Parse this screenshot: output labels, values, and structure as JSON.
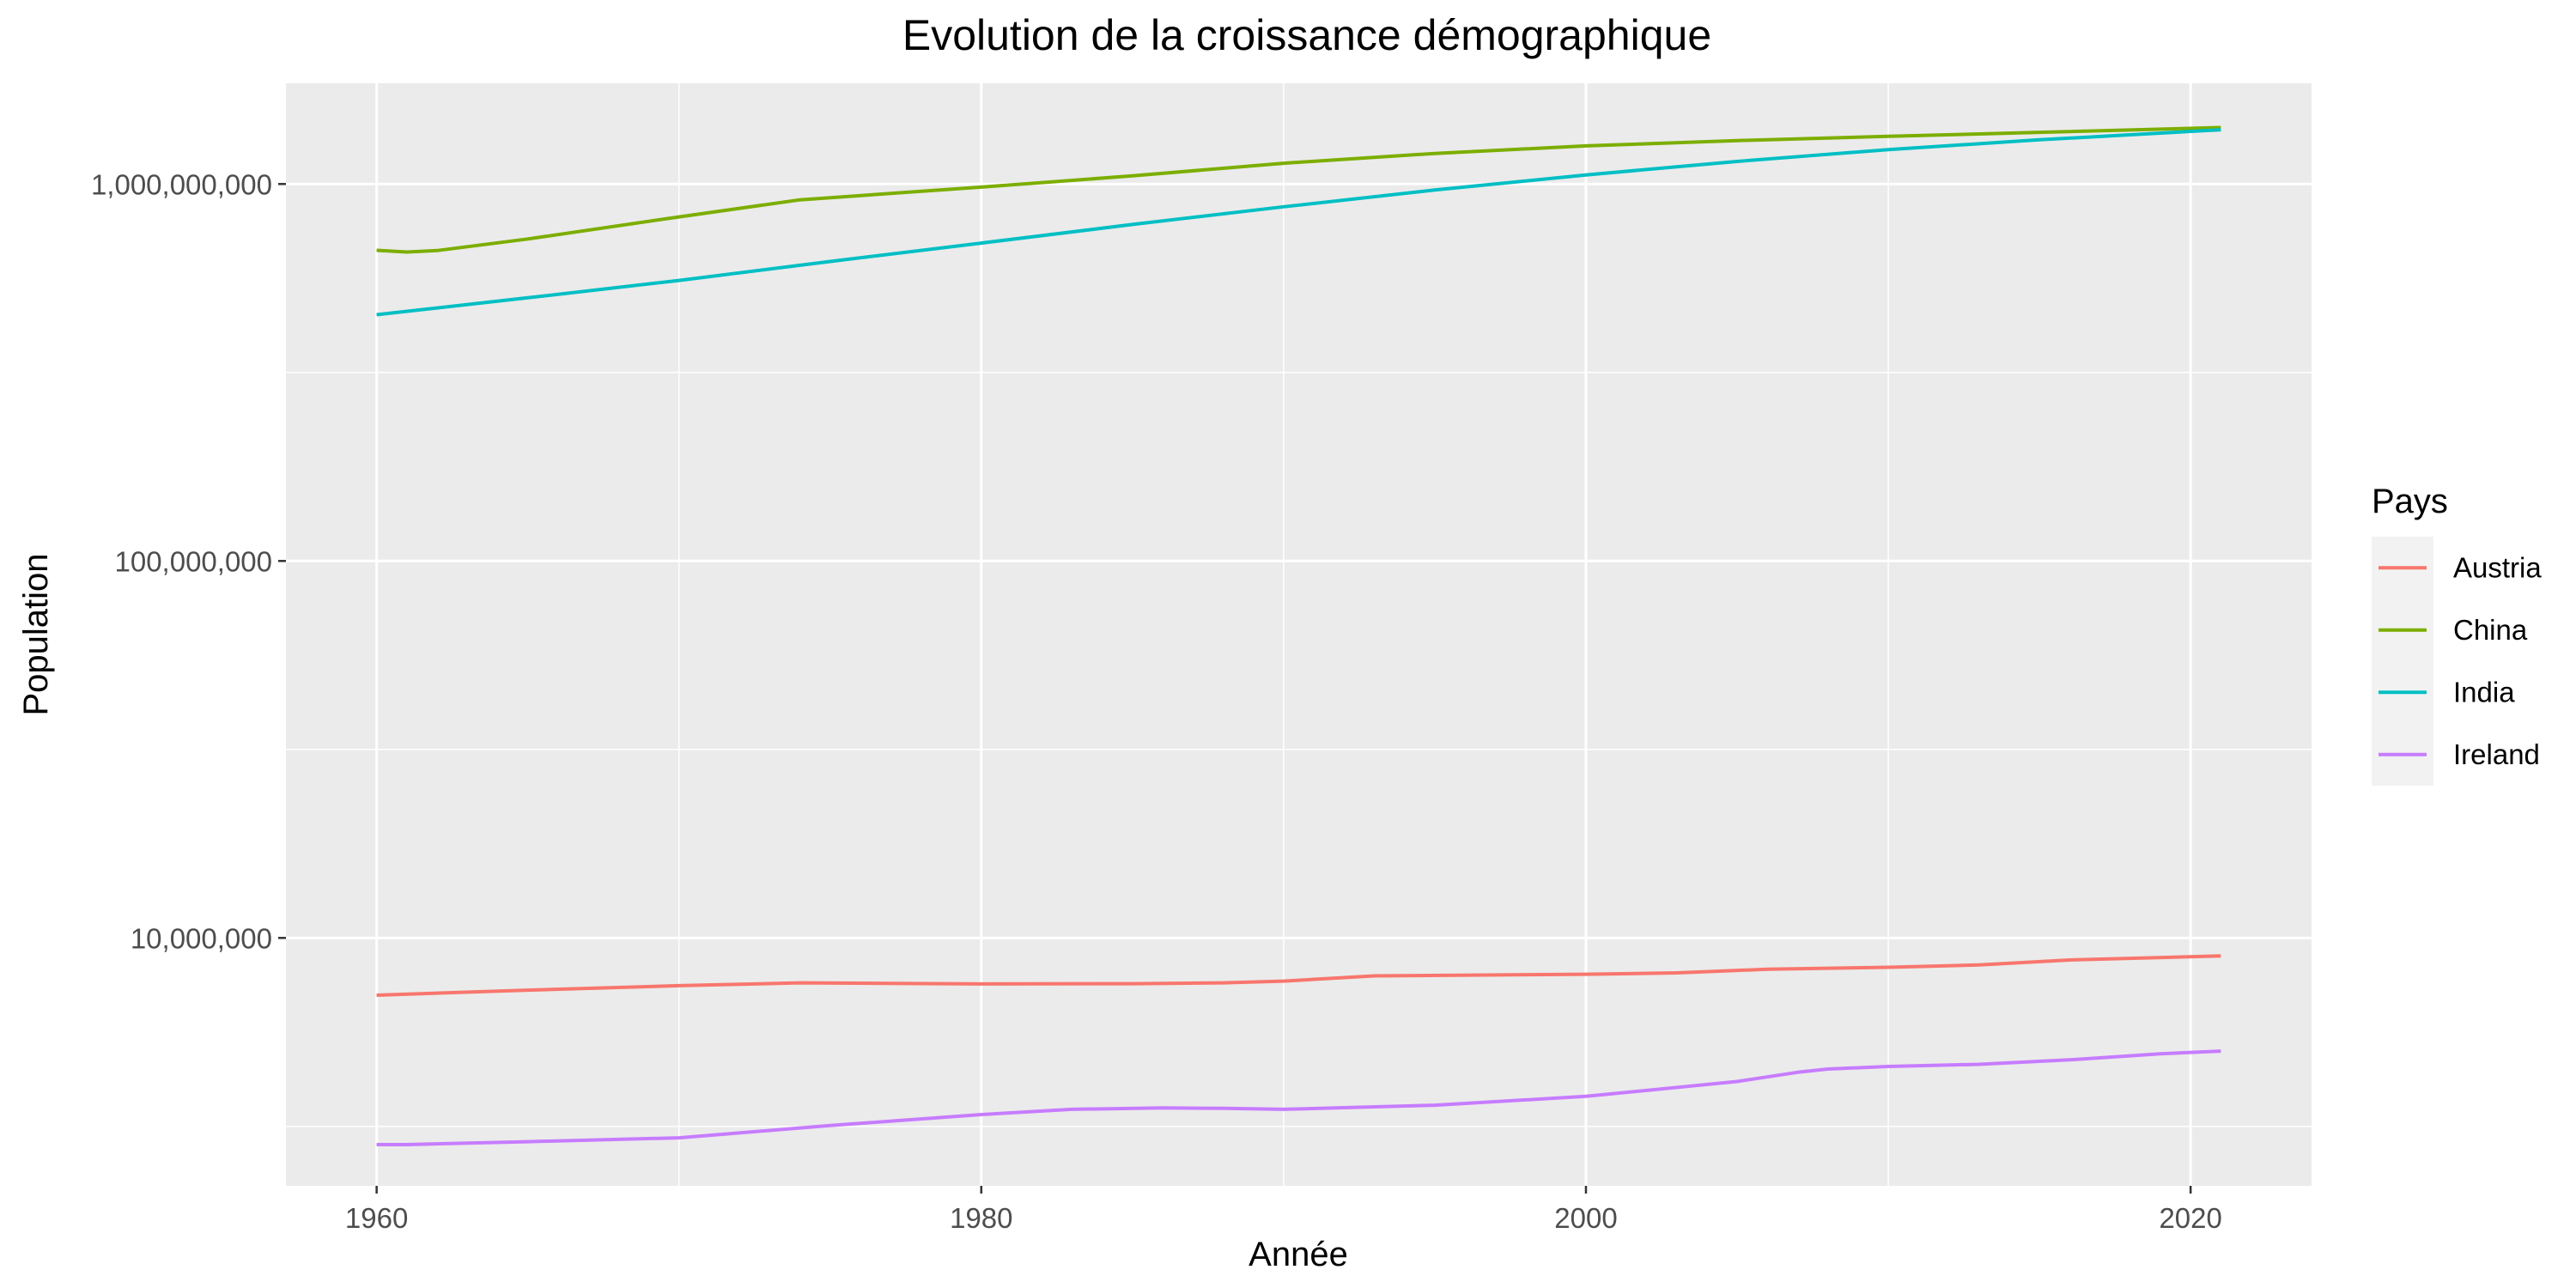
{
  "chart_data": {
    "type": "line",
    "title": "Evolution de la croissance démographique",
    "xlabel": "Année",
    "ylabel": "Population",
    "y_scale": "log",
    "xlim": [
      1957,
      2024
    ],
    "ylim": [
      2200000,
      1850000000
    ],
    "x_ticks": [
      {
        "value": 1960,
        "label": "1960"
      },
      {
        "value": 1980,
        "label": "1980"
      },
      {
        "value": 2000,
        "label": "2000"
      },
      {
        "value": 2020,
        "label": "2020"
      }
    ],
    "y_ticks": [
      {
        "value": 10000000,
        "label": "10,000,000"
      },
      {
        "value": 100000000,
        "label": "100,000,000"
      },
      {
        "value": 1000000000,
        "label": "1,000,000,000"
      }
    ],
    "grid": true,
    "legend": {
      "title": "Pays",
      "position": "right"
    },
    "series": [
      {
        "name": "Austria",
        "color": "#F8766D",
        "x": [
          1960,
          1965,
          1970,
          1974,
          1980,
          1985,
          1988,
          1990,
          1993,
          2000,
          2003,
          2006,
          2010,
          2013,
          2016,
          2021
        ],
        "y": [
          7050000,
          7270000,
          7470000,
          7600000,
          7550000,
          7560000,
          7600000,
          7680000,
          7930000,
          8010000,
          8080000,
          8260000,
          8360000,
          8480000,
          8740000,
          8960000
        ]
      },
      {
        "name": "China",
        "color": "#7CAE00",
        "x": [
          1960,
          1961,
          1962,
          1965,
          1970,
          1974,
          1980,
          1985,
          1990,
          1995,
          2000,
          2005,
          2010,
          2015,
          2021
        ],
        "y": [
          667000000,
          660000000,
          666000000,
          715000000,
          818000000,
          908000000,
          981000000,
          1051000000,
          1135000000,
          1205000000,
          1262000000,
          1304000000,
          1338000000,
          1371000000,
          1412000000
        ]
      },
      {
        "name": "India",
        "color": "#00BFC4",
        "x": [
          1960,
          1965,
          1970,
          1975,
          1980,
          1985,
          1990,
          1995,
          2000,
          2005,
          2010,
          2015,
          2021
        ],
        "y": [
          450000000,
          499000000,
          555000000,
          623000000,
          697000000,
          781000000,
          870000000,
          964000000,
          1057000000,
          1148000000,
          1234000000,
          1310000000,
          1393000000
        ]
      },
      {
        "name": "Ireland",
        "color": "#C77CFF",
        "x": [
          1960,
          1961,
          1965,
          1970,
          1975,
          1980,
          1983,
          1986,
          1988,
          1990,
          1995,
          2000,
          2005,
          2007,
          2008,
          2010,
          2013,
          2016,
          2019,
          2021
        ],
        "y": [
          2830000,
          2830000,
          2880000,
          2950000,
          3180000,
          3400000,
          3510000,
          3540000,
          3530000,
          3510000,
          3600000,
          3800000,
          4160000,
          4400000,
          4490000,
          4560000,
          4620000,
          4750000,
          4930000,
          5010000
        ]
      }
    ]
  }
}
